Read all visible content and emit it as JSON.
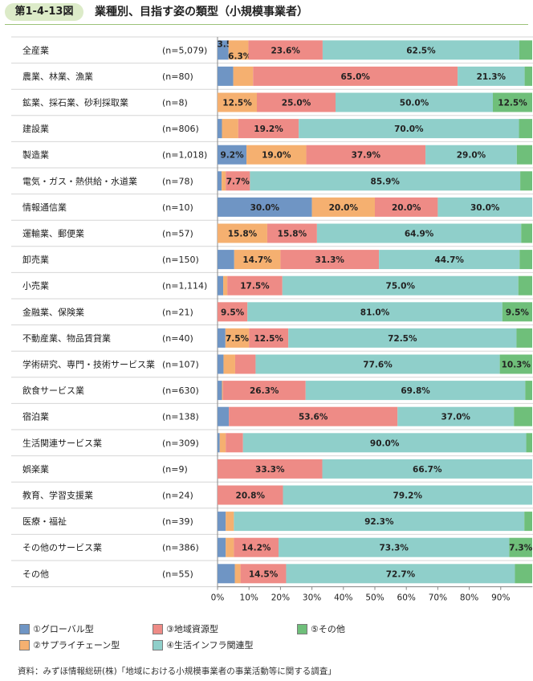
{
  "header": {
    "figure_number": "第1-4-13図",
    "title": "業種別、目指す姿の類型（小規模事業者）"
  },
  "colors": {
    "global": "#6f95c4",
    "supply": "#f5b070",
    "regional": "#ee8b86",
    "infra": "#8fcfca",
    "other": "#6fbf7a",
    "row_band_odd": "#ffffff",
    "row_band_even": "#ffffff",
    "grid": "#cccccc",
    "header_rule": "#9cc27a"
  },
  "legend": {
    "items": [
      {
        "key": "global",
        "label": "①グローバル型"
      },
      {
        "key": "supply",
        "label": "②サプライチェーン型"
      },
      {
        "key": "regional",
        "label": "③地域資源型"
      },
      {
        "key": "infra",
        "label": "④生活インフラ関連型"
      },
      {
        "key": "other",
        "label": "⑤その他"
      }
    ]
  },
  "source": "資料：みずほ情報総研(株)「地域における小規模事業者の事業活動等に関する調査」",
  "chart_data": {
    "type": "bar",
    "orientation": "horizontal",
    "stacked": true,
    "percent": true,
    "xlim": [
      0,
      100
    ],
    "x_ticks": [
      "0%",
      "10%",
      "20%",
      "30%",
      "40%",
      "50%",
      "60%",
      "70%",
      "80%",
      "90%"
    ],
    "x_tick_values": [
      0,
      10,
      20,
      30,
      40,
      50,
      60,
      70,
      80,
      90
    ],
    "categories": [
      "全産業",
      "農業、林業、漁業",
      "鉱業、採石業、砂利採取業",
      "建設業",
      "製造業",
      "電気・ガス・熱供給・水道業",
      "情報通信業",
      "運輸業、郵便業",
      "卸売業",
      "小売業",
      "金融業、保険業",
      "不動産業、物品賃貸業",
      "学術研究、専門・技術サービス業",
      "飲食サービス業",
      "宿泊業",
      "生活関連サービス業",
      "娯楽業",
      "教育、学習支援業",
      "医療・福祉",
      "その他のサービス業",
      "その他"
    ],
    "n_labels": [
      "(n=5,079)",
      "(n=80)",
      "(n=8)",
      "(n=806)",
      "(n=1,018)",
      "(n=78)",
      "(n=10)",
      "(n=57)",
      "(n=150)",
      "(n=1,114)",
      "(n=21)",
      "(n=40)",
      "(n=107)",
      "(n=630)",
      "(n=138)",
      "(n=309)",
      "(n=9)",
      "(n=24)",
      "(n=39)",
      "(n=386)",
      "(n=55)"
    ],
    "series": [
      {
        "name": "①グローバル型",
        "key": "global",
        "values": [
          3.5,
          5.0,
          0.0,
          1.4,
          9.2,
          1.3,
          30.0,
          0.0,
          5.3,
          1.8,
          0.0,
          2.5,
          1.9,
          1.4,
          3.6,
          0.7,
          0.0,
          0.0,
          2.6,
          2.6,
          5.5
        ],
        "labels": [
          "3.5%",
          "",
          "",
          "",
          "9.2%",
          "",
          "30.0%",
          "",
          "",
          "",
          "",
          "",
          "",
          "",
          "",
          "",
          "",
          "",
          "",
          "",
          ""
        ]
      },
      {
        "name": "②サプライチェーン型",
        "key": "supply",
        "values": [
          6.3,
          6.3,
          12.5,
          5.2,
          19.0,
          1.3,
          20.0,
          15.8,
          14.7,
          1.3,
          0.0,
          7.5,
          3.7,
          0.3,
          0.0,
          1.9,
          0.0,
          0.0,
          2.6,
          2.6,
          1.8
        ],
        "labels": [
          "6.3%",
          "",
          "12.5%",
          "",
          "19.0%",
          "",
          "20.0%",
          "15.8%",
          "14.7%",
          "",
          "",
          "7.5%",
          "",
          "",
          "",
          "",
          "",
          "",
          "",
          "",
          ""
        ],
        "label_offset_small": [
          true,
          false,
          false,
          false,
          false,
          false,
          false,
          false,
          false,
          false,
          false,
          false,
          false,
          false,
          false,
          false,
          false,
          false,
          false,
          false,
          false
        ]
      },
      {
        "name": "③地域資源型",
        "key": "regional",
        "values": [
          23.6,
          65.0,
          25.0,
          19.2,
          37.9,
          7.7,
          20.0,
          15.8,
          31.3,
          17.5,
          9.5,
          12.5,
          6.5,
          26.3,
          53.6,
          5.5,
          33.3,
          20.8,
          0.0,
          14.2,
          14.5
        ],
        "labels": [
          "23.6%",
          "65.0%",
          "25.0%",
          "19.2%",
          "37.9%",
          "7.7%",
          "20.0%",
          "15.8%",
          "31.3%",
          "17.5%",
          "9.5%",
          "12.5%",
          "",
          "26.3%",
          "53.6%",
          "",
          "33.3%",
          "20.8%",
          "",
          "14.2%",
          "14.5%"
        ]
      },
      {
        "name": "④生活インフラ関連型",
        "key": "infra",
        "values": [
          62.5,
          21.3,
          50.0,
          70.0,
          29.0,
          85.9,
          30.0,
          64.9,
          44.7,
          75.0,
          81.0,
          72.5,
          77.6,
          69.8,
          37.0,
          90.0,
          66.7,
          79.2,
          92.3,
          73.3,
          72.7
        ],
        "labels": [
          "62.5%",
          "21.3%",
          "50.0%",
          "70.0%",
          "29.0%",
          "85.9%",
          "30.0%",
          "64.9%",
          "44.7%",
          "75.0%",
          "81.0%",
          "72.5%",
          "77.6%",
          "69.8%",
          "37.0%",
          "90.0%",
          "66.7%",
          "79.2%",
          "92.3%",
          "73.3%",
          "72.7%"
        ]
      },
      {
        "name": "⑤その他",
        "key": "other",
        "values": [
          4.1,
          2.4,
          12.5,
          4.2,
          4.9,
          3.8,
          0.0,
          3.5,
          4.0,
          4.4,
          9.5,
          5.0,
          10.3,
          2.2,
          5.8,
          1.9,
          0.0,
          0.0,
          2.5,
          7.3,
          5.5
        ],
        "labels": [
          "",
          "",
          "12.5%",
          "",
          "",
          "",
          "",
          "",
          "",
          "",
          "9.5%",
          "",
          "10.3%",
          "",
          "",
          "",
          "",
          "",
          "",
          "7.3%",
          ""
        ]
      }
    ]
  }
}
